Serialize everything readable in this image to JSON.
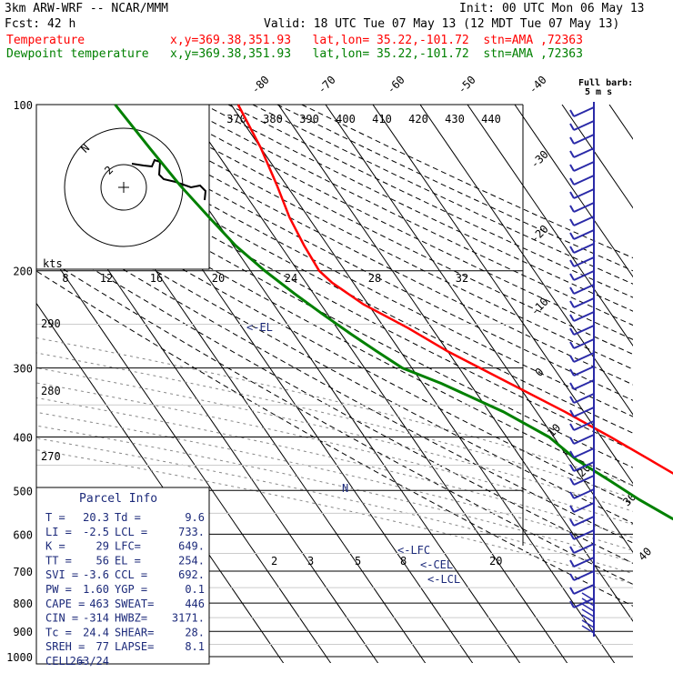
{
  "header": {
    "model": "3km ARW-WRF -- NCAR/MMM",
    "init": "Init: 00 UTC Mon 06 May 13",
    "fcst": "Fcst:   42 h",
    "valid": "Valid: 18 UTC Tue 07 May 13 (12 MDT Tue 07 May 13)",
    "temp_line": "Temperature            x,y=369.38,351.93   lat,lon= 35.22,-101.72  stn=AMA ,72363",
    "dew_line": "Dewpoint temperature   x,y=369.38,351.93   lat,lon= 35.22,-101.72  stn=AMA ,72363"
  },
  "colors": {
    "temperature": "#ff0000",
    "dewpoint": "#008000",
    "text": "#000000",
    "parcel_text": "#1c2a7a",
    "barbs": "#2a2aa8"
  },
  "parcel": {
    "title": "Parcel Info",
    "rows": [
      [
        "T  =",
        "20.3",
        "Td =",
        "9.6"
      ],
      [
        "LI =",
        "-2.5",
        "LCL =",
        "733."
      ],
      [
        "K  =",
        "29",
        "LFC=",
        "649."
      ],
      [
        "TT =",
        "56",
        "EL =",
        "254."
      ],
      [
        "SVI =",
        "-3.6",
        "CCL =",
        "692."
      ],
      [
        "PW =",
        "1.60",
        "YGP =",
        "0.1"
      ],
      [
        "CAPE =",
        "463",
        "SWEAT=",
        "446"
      ],
      [
        "CIN =",
        "-314",
        "HWBZ=",
        "3171."
      ],
      [
        "Tc =",
        "24.4",
        "SHEAR=",
        "28."
      ],
      [
        "SREH =",
        "77",
        "LAPSE=",
        "8.1"
      ],
      [
        "CELL =",
        "263/24",
        "",
        ""
      ]
    ]
  },
  "hodograph": {
    "units": "kts",
    "ticks": [
      "8",
      "12",
      "16",
      "20",
      "24",
      "28",
      "32"
    ],
    "ring_labels": [
      "2",
      "N"
    ]
  },
  "annotations": {
    "el": "<-EL",
    "lfc": "<-LFC",
    "cel": "<-CEL",
    "lcl": "<-LCL",
    "barb_scale": "Full barb:",
    "barb_scale_units": "5 m s",
    "theta_e": [
      "370",
      "380",
      "390",
      "400",
      "410",
      "420",
      "430",
      "440"
    ],
    "theta": [
      "290",
      "280",
      "270"
    ],
    "mixing": [
      "2",
      "3",
      "5",
      "8",
      "20"
    ]
  },
  "chart_data": {
    "type": "line",
    "title": "",
    "xlabel": "",
    "ylabel": "",
    "log_pressure_axis": true,
    "pressure_levels": [
      100,
      200,
      300,
      400,
      500,
      600,
      700,
      800,
      900,
      1000
    ],
    "isotherm_labels": [
      -80,
      -70,
      -60,
      -50,
      -40,
      -30,
      -20,
      -10,
      0,
      10,
      20,
      30,
      40
    ],
    "series": [
      {
        "name": "Temperature",
        "pressure": [
          900,
          880,
          860,
          840,
          800,
          780,
          760,
          740,
          733,
          700,
          660,
          640,
          600,
          560,
          520,
          480,
          440,
          400,
          360,
          320,
          280,
          254,
          230,
          210,
          200,
          180,
          160,
          140,
          120,
          100
        ],
        "temp": [
          20.3,
          18.0,
          16.5,
          17.5,
          14.0,
          12.5,
          11.5,
          10.0,
          9.4,
          7.0,
          5.2,
          4.0,
          1.5,
          -1.5,
          -4.5,
          -8.5,
          -13.0,
          -18.0,
          -24.0,
          -31.5,
          -40.0,
          -45.0,
          -51.0,
          -54.5,
          -55.5,
          -55.0,
          -54.0,
          -52.0,
          -50.0,
          -48.5
        ]
      },
      {
        "name": "Dewpoint temperature",
        "pressure": [
          900,
          880,
          860,
          840,
          820,
          800,
          780,
          760,
          740,
          700,
          660,
          620,
          600,
          560,
          520,
          480,
          440,
          400,
          360,
          320,
          300,
          280,
          260,
          240,
          220,
          200,
          180,
          160,
          140,
          120,
          100
        ],
        "temp": [
          9.6,
          10.0,
          10.0,
          2.0,
          0.0,
          -2.5,
          -3.5,
          -4.5,
          -5.0,
          -6.0,
          -7.0,
          -10.0,
          -12.5,
          -17.0,
          -21.0,
          -24.5,
          -28.5,
          -31.0,
          -37.0,
          -46.0,
          -52.0,
          -55.0,
          -58.0,
          -61.0,
          -64.0,
          -67.0,
          -69.5,
          -71.0,
          -72.5,
          -73.5,
          -74.5
        ]
      }
    ]
  }
}
